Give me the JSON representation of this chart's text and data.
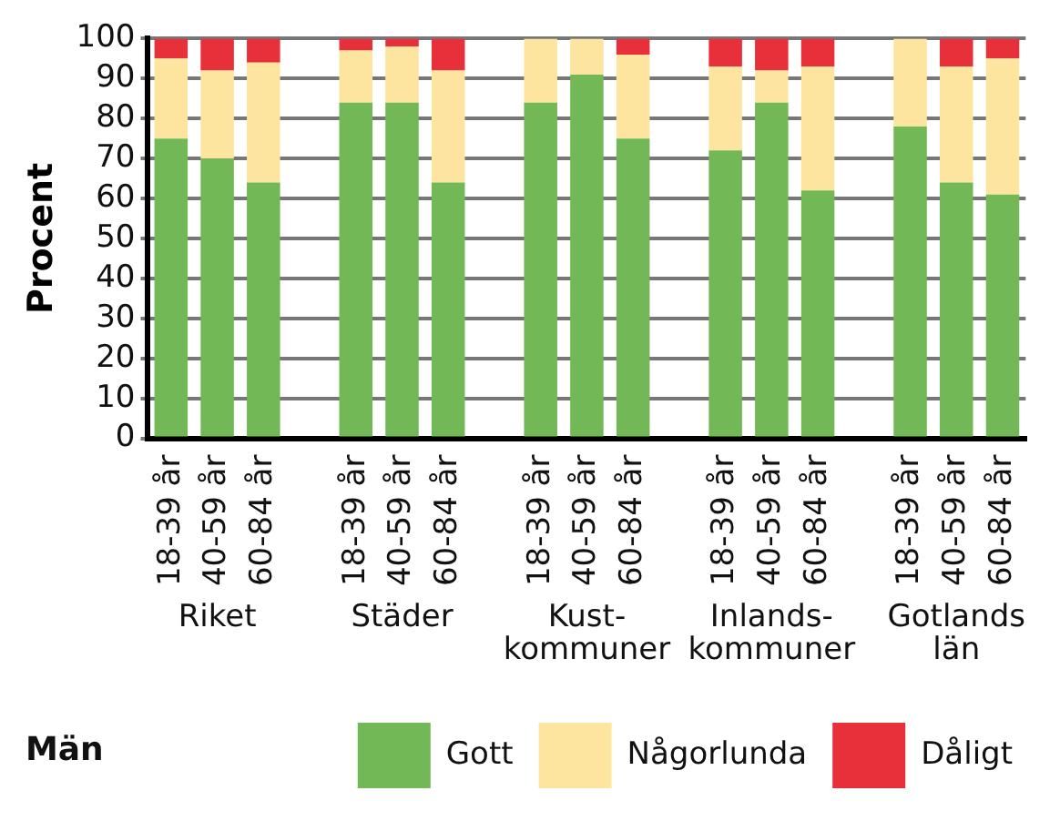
{
  "chart_data": {
    "type": "bar",
    "stacked": true,
    "ylabel": "Procent",
    "legend_title": "Män",
    "legend": "bottom",
    "grid": "y",
    "categories": [
      "18-39 år",
      "40-59 år",
      "60-84 år",
      null,
      "18-39 år",
      "40-59 år",
      "60-84 år",
      null,
      "18-39 år",
      "40-59 år",
      "60-84 år",
      null,
      "18-39 år",
      "40-59 år",
      "60-84 år",
      null,
      "18-39 år",
      "40-59 år",
      "60-84 år"
    ],
    "series": [
      {
        "name": "Gott",
        "color": "#72b857",
        "values": [
          75,
          70,
          64,
          null,
          84,
          84,
          64,
          null,
          84,
          91,
          75,
          null,
          72,
          84,
          62,
          null,
          78,
          64,
          61
        ]
      },
      {
        "name": "Någorlunda",
        "color": "#fde59f",
        "values": [
          20,
          22,
          30,
          null,
          13,
          14,
          28,
          null,
          16,
          9,
          21,
          null,
          21,
          8,
          31,
          null,
          22,
          29,
          34
        ]
      },
      {
        "name": "Dåligt",
        "color": "#e8303a",
        "values": [
          5,
          8,
          6,
          null,
          3,
          2,
          8,
          null,
          0,
          0,
          4,
          null,
          7,
          8,
          7,
          null,
          0,
          7,
          5
        ]
      }
    ],
    "annotations": [
      "Riket",
      "Städer",
      "Kust-\nkommuner",
      "Inlands-\nkommuner",
      "Gotlands\nlän"
    ],
    "ylim": [
      0,
      100
    ],
    "yticks": [
      0,
      10,
      20,
      30,
      40,
      50,
      60,
      70,
      80,
      90,
      100
    ]
  }
}
